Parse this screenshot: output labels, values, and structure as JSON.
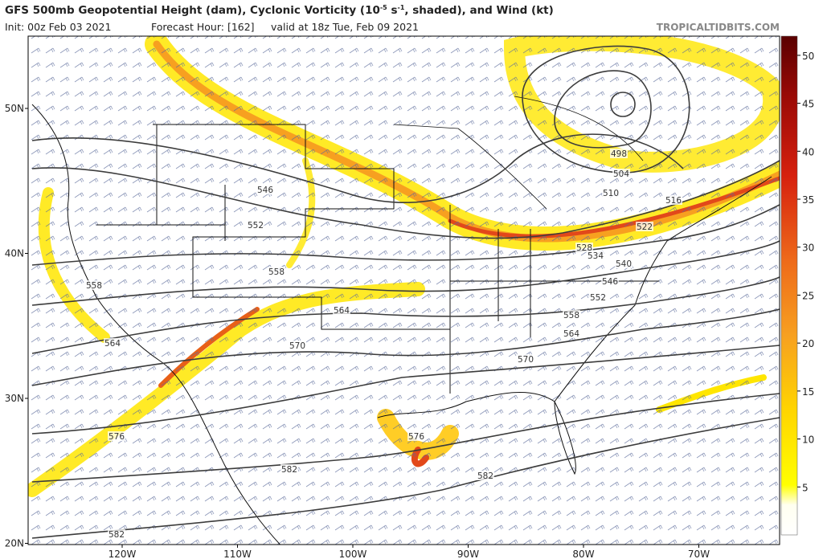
{
  "header": {
    "title_parts": [
      "GFS 500mb Geopotential Height (dam), Cyclonic Vorticity (10",
      "-5",
      " s",
      "-1",
      ", shaded), and Wind (kt)"
    ],
    "init": "Init: 00z Feb 03 2021",
    "forecast_hour": "Forecast Hour: [162]",
    "valid": "valid at 18z Tue, Feb 09 2021",
    "brand": "TROPICALTIDBITS.COM"
  },
  "map": {
    "lat_labels": [
      {
        "value": 50,
        "label": "50N"
      },
      {
        "value": 40,
        "label": "40N"
      },
      {
        "value": 30,
        "label": "30N"
      },
      {
        "value": 20,
        "label": "20N"
      }
    ],
    "lon_labels": [
      {
        "value": -120,
        "label": "120W"
      },
      {
        "value": -110,
        "label": "110W"
      },
      {
        "value": -100,
        "label": "100W"
      },
      {
        "value": -90,
        "label": "90W"
      },
      {
        "value": -80,
        "label": "80W"
      },
      {
        "value": -70,
        "label": "70W"
      }
    ],
    "contour_labels": [
      546,
      552,
      558,
      564,
      570,
      576,
      582,
      582,
      558,
      564,
      498,
      504,
      510,
      516,
      522,
      528,
      534,
      540,
      546,
      552,
      558,
      564,
      570,
      576,
      582
    ]
  },
  "colorbar": {
    "range": [
      0,
      52
    ],
    "ticks": [
      5,
      10,
      15,
      20,
      25,
      30,
      35,
      40,
      45,
      50
    ]
  }
}
